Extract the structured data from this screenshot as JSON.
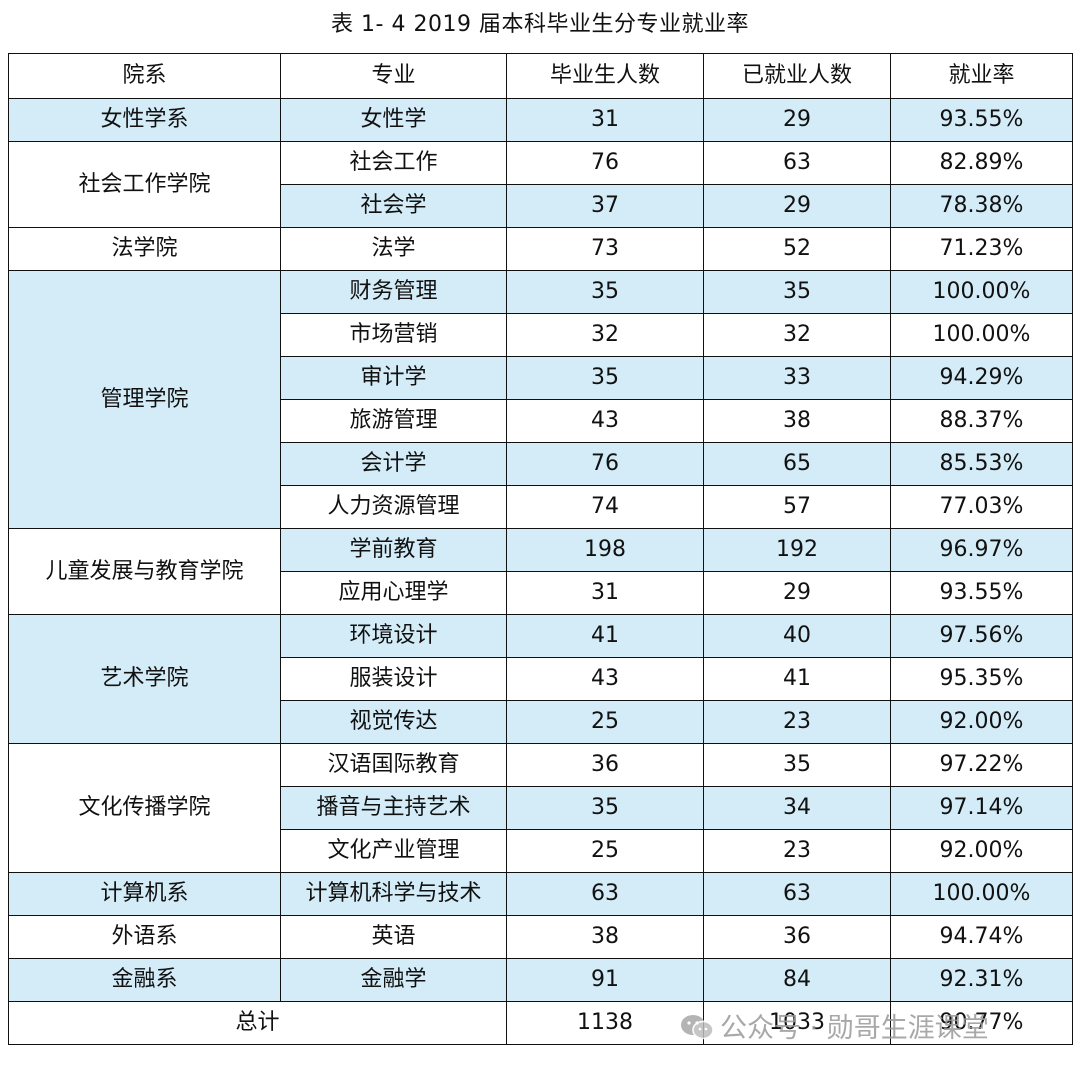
{
  "title": "表 1- 4  2019 届本科毕业生分专业就业率",
  "headers": [
    "院系",
    "专业",
    "毕业生人数",
    "已就业人数",
    "就业率"
  ],
  "colors": {
    "highlight": "#d3ecf7",
    "border": "#111111"
  },
  "groups": [
    {
      "dept": "女性学系",
      "dept_highlight": true,
      "rows": [
        {
          "major": "女性学",
          "grads": "31",
          "employed": "29",
          "rate": "93.55%",
          "highlight": true
        }
      ]
    },
    {
      "dept": "社会工作学院",
      "dept_highlight": false,
      "rows": [
        {
          "major": "社会工作",
          "grads": "76",
          "employed": "63",
          "rate": "82.89%",
          "highlight": false
        },
        {
          "major": "社会学",
          "grads": "37",
          "employed": "29",
          "rate": "78.38%",
          "highlight": true
        }
      ]
    },
    {
      "dept": "法学院",
      "dept_highlight": false,
      "rows": [
        {
          "major": "法学",
          "grads": "73",
          "employed": "52",
          "rate": "71.23%",
          "highlight": false
        }
      ]
    },
    {
      "dept": "管理学院",
      "dept_highlight": true,
      "rows": [
        {
          "major": "财务管理",
          "grads": "35",
          "employed": "35",
          "rate": "100.00%",
          "highlight": true
        },
        {
          "major": "市场营销",
          "grads": "32",
          "employed": "32",
          "rate": "100.00%",
          "highlight": false
        },
        {
          "major": "审计学",
          "grads": "35",
          "employed": "33",
          "rate": "94.29%",
          "highlight": true
        },
        {
          "major": "旅游管理",
          "grads": "43",
          "employed": "38",
          "rate": "88.37%",
          "highlight": false
        },
        {
          "major": "会计学",
          "grads": "76",
          "employed": "65",
          "rate": "85.53%",
          "highlight": true
        },
        {
          "major": "人力资源管理",
          "grads": "74",
          "employed": "57",
          "rate": "77.03%",
          "highlight": false
        }
      ]
    },
    {
      "dept": "儿童发展与教育学院",
      "dept_highlight": false,
      "rows": [
        {
          "major": "学前教育",
          "grads": "198",
          "employed": "192",
          "rate": "96.97%",
          "highlight": true
        },
        {
          "major": "应用心理学",
          "grads": "31",
          "employed": "29",
          "rate": "93.55%",
          "highlight": false
        }
      ]
    },
    {
      "dept": "艺术学院",
      "dept_highlight": true,
      "rows": [
        {
          "major": "环境设计",
          "grads": "41",
          "employed": "40",
          "rate": "97.56%",
          "highlight": true
        },
        {
          "major": "服装设计",
          "grads": "43",
          "employed": "41",
          "rate": "95.35%",
          "highlight": false
        },
        {
          "major": "视觉传达",
          "grads": "25",
          "employed": "23",
          "rate": "92.00%",
          "highlight": true
        }
      ]
    },
    {
      "dept": "文化传播学院",
      "dept_highlight": false,
      "rows": [
        {
          "major": "汉语国际教育",
          "grads": "36",
          "employed": "35",
          "rate": "97.22%",
          "highlight": false
        },
        {
          "major": "播音与主持艺术",
          "grads": "35",
          "employed": "34",
          "rate": "97.14%",
          "highlight": true
        },
        {
          "major": "文化产业管理",
          "grads": "25",
          "employed": "23",
          "rate": "92.00%",
          "highlight": false
        }
      ]
    },
    {
      "dept": "计算机系",
      "dept_highlight": true,
      "rows": [
        {
          "major": "计算机科学与技术",
          "grads": "63",
          "employed": "63",
          "rate": "100.00%",
          "highlight": true
        }
      ]
    },
    {
      "dept": "外语系",
      "dept_highlight": false,
      "rows": [
        {
          "major": "英语",
          "grads": "38",
          "employed": "36",
          "rate": "94.74%",
          "highlight": false
        }
      ]
    },
    {
      "dept": "金融系",
      "dept_highlight": true,
      "rows": [
        {
          "major": "金融学",
          "grads": "91",
          "employed": "84",
          "rate": "92.31%",
          "highlight": true
        }
      ]
    }
  ],
  "total": {
    "label": "总计",
    "grads": "1138",
    "employed": "1033",
    "rate": "90.77%"
  },
  "watermark": {
    "text": "公众号 · 勋哥生涯课堂",
    "icon": "wechat-icon"
  }
}
